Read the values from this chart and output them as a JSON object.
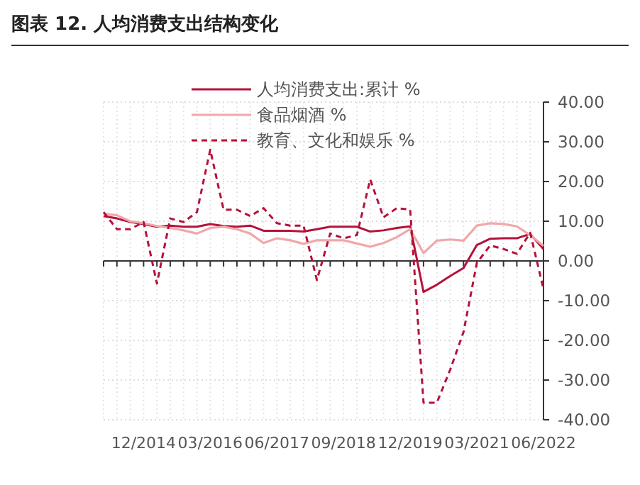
{
  "chart_data": {
    "type": "line",
    "title": "图表 12. 人均消费支出结构变化",
    "categories": [
      null,
      null,
      null,
      "12/2014",
      null,
      null,
      null,
      null,
      "03/2016",
      null,
      null,
      null,
      null,
      "06/2017",
      null,
      null,
      null,
      null,
      "09/2018",
      null,
      null,
      null,
      null,
      "12/2019",
      null,
      null,
      null,
      null,
      "03/2021",
      null,
      null,
      null,
      null,
      "06/2022"
    ],
    "series": [
      {
        "name": "人均消费支出:累计 %",
        "color": "#b5123a",
        "line_style": "solid",
        "values": [
          11.3,
          10.7,
          9.8,
          9.3,
          8.6,
          8.9,
          8.6,
          8.6,
          9.3,
          8.8,
          8.6,
          8.9,
          7.6,
          7.6,
          7.6,
          7.4,
          8.0,
          8.6,
          8.6,
          8.6,
          7.4,
          7.7,
          8.3,
          8.7,
          -7.8,
          -6.0,
          -3.8,
          -1.8,
          4.0,
          5.6,
          5.7,
          5.7,
          6.8,
          3.0
        ]
      },
      {
        "name": "食品烟酒 %",
        "color": "#f0a8aa",
        "line_style": "solid",
        "values": [
          11.9,
          11.5,
          10.0,
          9.5,
          8.8,
          8.3,
          7.7,
          6.9,
          8.3,
          8.6,
          8.0,
          6.9,
          4.5,
          5.7,
          5.2,
          4.3,
          5.2,
          5.2,
          5.2,
          4.4,
          3.6,
          4.5,
          6.0,
          8.0,
          2.0,
          5.1,
          5.4,
          5.1,
          8.9,
          9.5,
          9.3,
          8.7,
          6.5,
          3.8
        ]
      },
      {
        "name": "教育、文化和娱乐 %",
        "color": "#b5123a",
        "line_style": "dashed",
        "values": [
          12.3,
          8.0,
          8.0,
          9.8,
          -5.7,
          10.7,
          9.8,
          12.3,
          28.0,
          12.9,
          12.9,
          11.3,
          13.3,
          9.5,
          8.9,
          8.9,
          -4.8,
          6.9,
          5.7,
          6.5,
          20.5,
          11.0,
          13.3,
          12.9,
          -35.7,
          -35.7,
          -27.4,
          -17.9,
          -0.5,
          3.9,
          3.0,
          1.8,
          7.1,
          -7.1
        ]
      }
    ],
    "ylim": [
      -40,
      40
    ],
    "yticks": [
      {
        "value": -40,
        "label": "-40.00"
      },
      {
        "value": -30,
        "label": "-30.00"
      },
      {
        "value": -20,
        "label": "-20.00"
      },
      {
        "value": -10,
        "label": "-10.00"
      },
      {
        "value": 0,
        "label": "0.00"
      },
      {
        "value": 10,
        "label": "10.00"
      },
      {
        "value": 20,
        "label": "20.00"
      },
      {
        "value": 30,
        "label": "30.00"
      },
      {
        "value": 40,
        "label": "40.00"
      }
    ],
    "grid": true,
    "legend": "top"
  }
}
